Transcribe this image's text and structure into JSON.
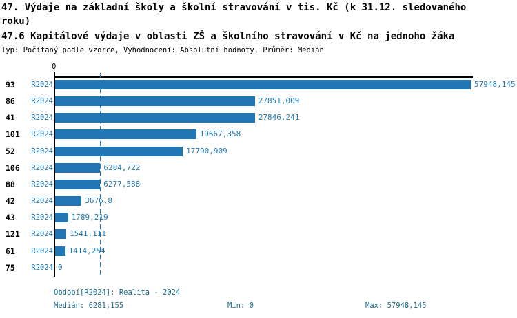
{
  "header": {
    "title_lines": [
      "47. Výdaje na základní školy a školní stravování v tis. Kč (k 31.12. sledovaného",
      "roku)"
    ],
    "subtitle": "47.6 Kapitálové výdaje v oblasti ZŠ a školního stravování v Kč na jednoho žáka",
    "meta": "Typ: Počítaný podle vzorce, Vyhodnocení: Absolutní hodnoty, Průměr: Medián"
  },
  "chart_data": {
    "type": "bar",
    "orientation": "horizontal",
    "title": "47.6 Kapitálové výdaje v oblasti ZŠ a školního stravování v Kč na jednoho žáka",
    "categories": [
      "93",
      "86",
      "41",
      "101",
      "52",
      "106",
      "88",
      "42",
      "43",
      "121",
      "61",
      "75"
    ],
    "series": [
      {
        "name": "R2024",
        "values": [
          57948.145,
          27851.009,
          27846.241,
          19667.358,
          17790.909,
          6284.722,
          6277.588,
          3676.8,
          1789.219,
          1541.111,
          1414.254,
          0
        ],
        "value_labels": [
          "57948,145",
          "27851,009",
          "27846,241",
          "19667,358",
          "17790,909",
          "6284,722",
          "6277,588",
          "3676,8",
          "1789,219",
          "1541,111",
          "1414,254",
          "0"
        ]
      }
    ],
    "xlabel": "",
    "ylabel": "",
    "xlim": [
      0,
      57948.145
    ],
    "x_tick_labels": [
      "0"
    ],
    "median": 6281.155,
    "median_line_style": "dashed",
    "grid": false,
    "legend": "none",
    "bar_color": "#2077b4",
    "value_label_color": "#1f77b4",
    "median_line_color": "#1f77b4"
  },
  "footer": {
    "period_info": "Období[R2024]: Realita - 2024",
    "median": "Medián: 6281,155",
    "min": "Min: 0",
    "max": "Max: 57948,145"
  },
  "colors": {
    "bar": "#2077b4",
    "chart_text_blue": "#1f77b4",
    "footer_text": "#1b6a8a",
    "axis": "#000000",
    "background": "#ffffff"
  }
}
